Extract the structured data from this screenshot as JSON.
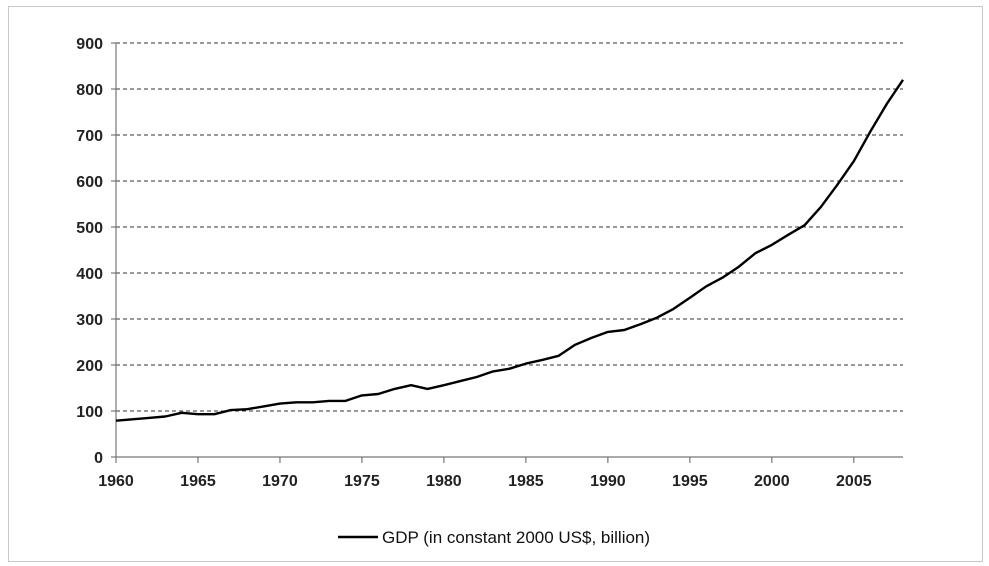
{
  "chart_data": {
    "type": "line",
    "title": "",
    "xlabel": "",
    "ylabel": "",
    "xlim": [
      1960,
      2008
    ],
    "ylim": [
      0,
      900
    ],
    "grid": true,
    "legend_position": "bottom",
    "x_ticks": [
      1960,
      1965,
      1970,
      1975,
      1980,
      1985,
      1990,
      1995,
      2000,
      2005
    ],
    "x_tick_labels": [
      "1960",
      "1965",
      "1970",
      "1975",
      "1980",
      "1985",
      "1990",
      "1995",
      "2000",
      "2005"
    ],
    "y_ticks": [
      0,
      100,
      200,
      300,
      400,
      500,
      600,
      700,
      800,
      900
    ],
    "y_tick_labels": [
      "0",
      "100",
      "200",
      "300",
      "400",
      "500",
      "600",
      "700",
      "800",
      "900"
    ],
    "line_color": "#000000",
    "series": [
      {
        "name": "GDP (in constant 2000 US$, billion)",
        "x": [
          1960,
          1961,
          1962,
          1963,
          1964,
          1965,
          1966,
          1967,
          1968,
          1969,
          1970,
          1971,
          1972,
          1973,
          1974,
          1975,
          1976,
          1977,
          1978,
          1979,
          1980,
          1981,
          1982,
          1983,
          1984,
          1985,
          1986,
          1987,
          1988,
          1989,
          1990,
          1991,
          1992,
          1993,
          1994,
          1995,
          1996,
          1997,
          1998,
          1999,
          2000,
          2001,
          2002,
          2003,
          2004,
          2005,
          2006,
          2007,
          2008
        ],
        "values": [
          79,
          82,
          85,
          88,
          96,
          93,
          93,
          102,
          104,
          110,
          116,
          119,
          119,
          122,
          122,
          134,
          137,
          148,
          156,
          148,
          156,
          165,
          174,
          186,
          192,
          203,
          211,
          220,
          244,
          259,
          272,
          276,
          289,
          303,
          322,
          346,
          371,
          390,
          414,
          443,
          461,
          483,
          504,
          544,
          592,
          643,
          707,
          767,
          820
        ]
      }
    ]
  }
}
